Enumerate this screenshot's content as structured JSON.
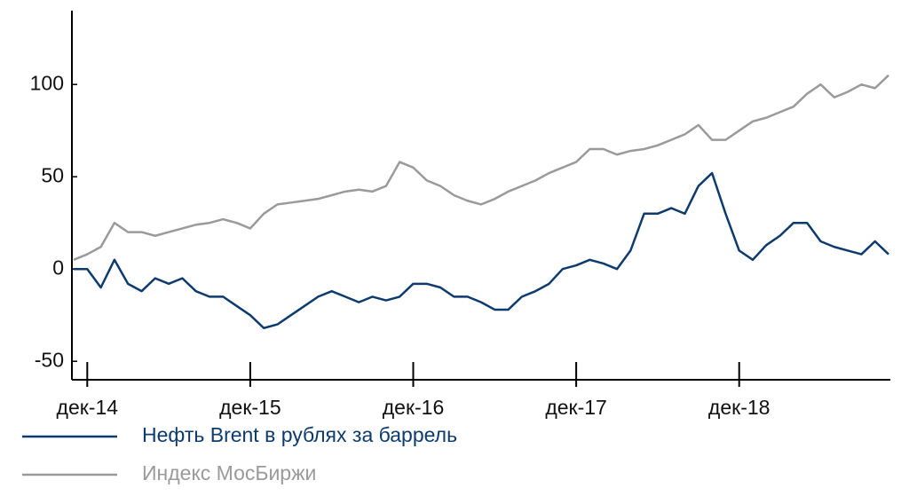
{
  "chart_data": {
    "type": "line",
    "categories": [
      null,
      "дек-14",
      null,
      null,
      null,
      null,
      null,
      null,
      null,
      null,
      null,
      null,
      null,
      "дек-15",
      null,
      null,
      null,
      null,
      null,
      null,
      null,
      null,
      null,
      null,
      null,
      "дек-16",
      null,
      null,
      null,
      null,
      null,
      null,
      null,
      null,
      null,
      null,
      null,
      "дек-17",
      null,
      null,
      null,
      null,
      null,
      null,
      null,
      null,
      null,
      null,
      null,
      "дек-18",
      null,
      null,
      null,
      null,
      null,
      null,
      null,
      null,
      null,
      null,
      null
    ],
    "series": [
      {
        "name": "Нефть Brent в рублях за баррель",
        "color": "#0d3b6e",
        "values": [
          0,
          0,
          -10,
          5,
          -8,
          -12,
          -5,
          -8,
          -5,
          -12,
          -15,
          -15,
          -20,
          -25,
          -32,
          -30,
          -25,
          -20,
          -15,
          -12,
          -15,
          -18,
          -15,
          -17,
          -15,
          -8,
          -8,
          -10,
          -15,
          -15,
          -18,
          -22,
          -22,
          -15,
          -12,
          -8,
          0,
          2,
          5,
          3,
          0,
          10,
          30,
          30,
          33,
          30,
          45,
          52,
          30,
          10,
          5,
          13,
          18,
          25,
          25,
          15,
          12,
          10,
          8,
          15,
          8
        ]
      },
      {
        "name": "Индекс МосБиржи",
        "color": "#9a9a9a",
        "values": [
          5,
          8,
          12,
          25,
          20,
          20,
          18,
          20,
          22,
          24,
          25,
          27,
          25,
          22,
          30,
          35,
          36,
          37,
          38,
          40,
          42,
          43,
          42,
          45,
          58,
          55,
          48,
          45,
          40,
          37,
          35,
          38,
          42,
          45,
          48,
          52,
          55,
          58,
          65,
          65,
          62,
          64,
          65,
          67,
          70,
          73,
          78,
          70,
          70,
          75,
          80,
          82,
          85,
          88,
          95,
          100,
          93,
          96,
          100,
          98,
          105
        ]
      }
    ],
    "ylim": [
      -60,
      140
    ],
    "yticks": [
      -50,
      0,
      50,
      100
    ]
  }
}
